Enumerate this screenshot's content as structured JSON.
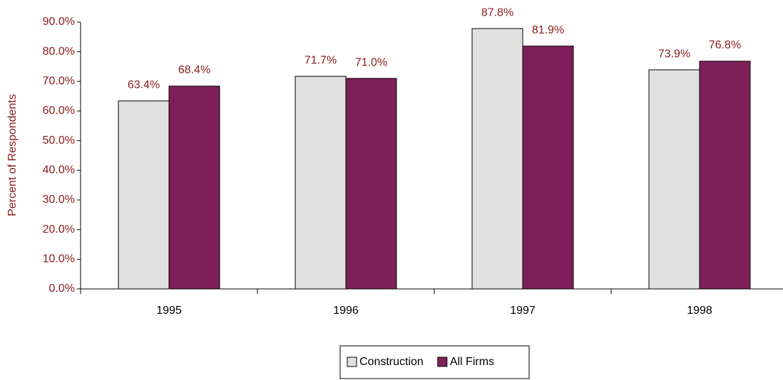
{
  "chart_data": {
    "type": "bar",
    "ylabel": "Percent of Respondents",
    "categories": [
      "1995",
      "1996",
      "1997",
      "1998"
    ],
    "series": [
      {
        "name": "Construction",
        "color": "#e0e0e0",
        "values": [
          63.4,
          71.7,
          87.8,
          73.9
        ],
        "value_labels": [
          "63.4%",
          "71.7%",
          "87.8%",
          "73.9%"
        ]
      },
      {
        "name": "All Firms",
        "color": "#7f1f5a",
        "values": [
          68.4,
          71.0,
          81.9,
          76.8
        ],
        "value_labels": [
          "68.4%",
          "71.0%",
          "81.9%",
          "76.8%"
        ]
      }
    ],
    "ylim": [
      0,
      90
    ],
    "yticks": [
      {
        "value": 0,
        "label": "0.0%"
      },
      {
        "value": 10,
        "label": "10.0%"
      },
      {
        "value": 20,
        "label": "20.0%"
      },
      {
        "value": 30,
        "label": "30.0%"
      },
      {
        "value": 40,
        "label": "40.0%"
      },
      {
        "value": 50,
        "label": "50.0%"
      },
      {
        "value": 60,
        "label": "60.0%"
      },
      {
        "value": 70,
        "label": "70.0%"
      },
      {
        "value": 80,
        "label": "80.0%"
      },
      {
        "value": 90,
        "label": "90.0%"
      }
    ],
    "grid": false,
    "legend": "bottom"
  }
}
